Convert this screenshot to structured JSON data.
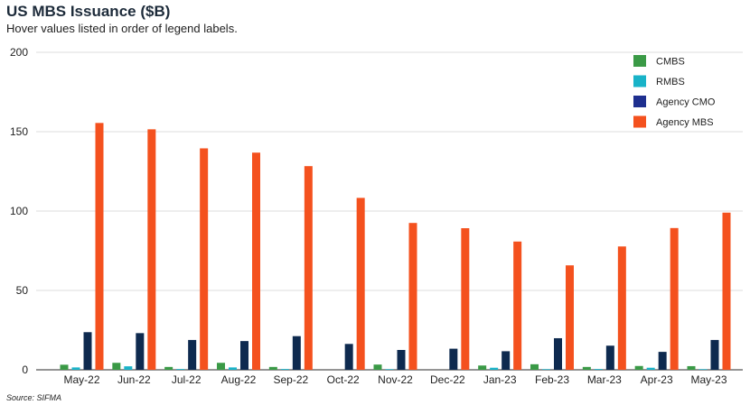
{
  "title": "US MBS Issuance ($B)",
  "subtitle": "Hover values listed in order of legend labels.",
  "source": "Source: SIFMA",
  "chart_data": {
    "type": "bar",
    "categories": [
      "May-22",
      "Jun-22",
      "Jul-22",
      "Aug-22",
      "Sep-22",
      "Oct-22",
      "Nov-22",
      "Dec-22",
      "Jan-23",
      "Feb-23",
      "Mar-23",
      "Apr-23",
      "May-23"
    ],
    "series": [
      {
        "name": "CMBS",
        "color": "#3a9a46",
        "values": [
          3.2,
          4.4,
          1.8,
          4.4,
          1.8,
          0,
          3.3,
          0,
          2.7,
          3.5,
          1.8,
          2.4,
          2.3
        ]
      },
      {
        "name": "RMBS",
        "color": "#19b3c8",
        "values": [
          1.5,
          2.2,
          0.5,
          1.5,
          0.5,
          0,
          0.4,
          0,
          1.3,
          0.4,
          0.5,
          1.3,
          0.4
        ]
      },
      {
        "name": "Agency CMO",
        "color": "#0e2a4f",
        "values": [
          23.7,
          23.1,
          18.8,
          18.1,
          21.2,
          16.3,
          12.5,
          13.3,
          11.7,
          19.9,
          15.2,
          11.3,
          18.8
        ]
      },
      {
        "name": "Agency MBS",
        "color": "#f4511e",
        "values": [
          155.5,
          151.5,
          139.5,
          136.8,
          128.3,
          108.3,
          92.5,
          89.2,
          80.8,
          65.8,
          77.7,
          89.3,
          99.0
        ]
      }
    ],
    "legend_colors": [
      "#3a9a46",
      "#19b3c8",
      "#1e2f8f",
      "#f4511e"
    ],
    "ylim": [
      0,
      200
    ],
    "yticks": [
      0,
      50,
      100,
      150,
      200
    ],
    "grid": true,
    "legend_position": "top-right"
  }
}
